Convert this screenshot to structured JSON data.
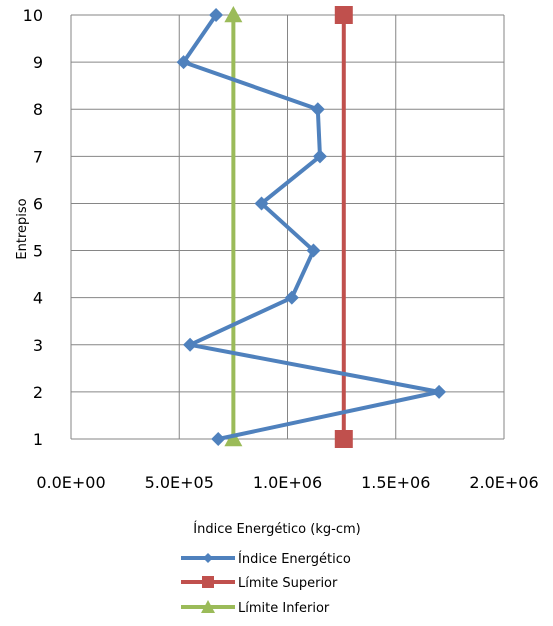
{
  "chart_data": {
    "type": "line",
    "orientation": "horizontal-x-values",
    "xlabel": "Índice Energético (kg-cm)",
    "ylabel": "Entrepiso",
    "xlim": [
      0,
      2000000
    ],
    "ylim": [
      1,
      10
    ],
    "x_ticks": [
      "0.0E+00",
      "5.0E+05",
      "1.0E+06",
      "1.5E+06",
      "2.0E+06"
    ],
    "y_ticks": [
      "1",
      "2",
      "3",
      "4",
      "5",
      "6",
      "7",
      "8",
      "9",
      "10"
    ],
    "grid": true,
    "legend_position": "bottom",
    "series": [
      {
        "name": "Índice Energético",
        "color": "#4F81BD",
        "marker": "diamond",
        "points": [
          {
            "x": 680000,
            "y": 1
          },
          {
            "x": 1700000,
            "y": 2
          },
          {
            "x": 550000,
            "y": 3
          },
          {
            "x": 1020000,
            "y": 4
          },
          {
            "x": 1120000,
            "y": 5
          },
          {
            "x": 880000,
            "y": 6
          },
          {
            "x": 1150000,
            "y": 7
          },
          {
            "x": 1140000,
            "y": 8
          },
          {
            "x": 520000,
            "y": 9
          },
          {
            "x": 670000,
            "y": 10
          }
        ]
      },
      {
        "name": "Límite Superior",
        "color": "#C0504D",
        "marker": "square",
        "points": [
          {
            "x": 1260000,
            "y": 1
          },
          {
            "x": 1260000,
            "y": 10
          }
        ]
      },
      {
        "name": "Límite Inferior",
        "color": "#9BBB59",
        "marker": "triangle",
        "points": [
          {
            "x": 750000,
            "y": 1
          },
          {
            "x": 750000,
            "y": 10
          }
        ]
      }
    ]
  }
}
